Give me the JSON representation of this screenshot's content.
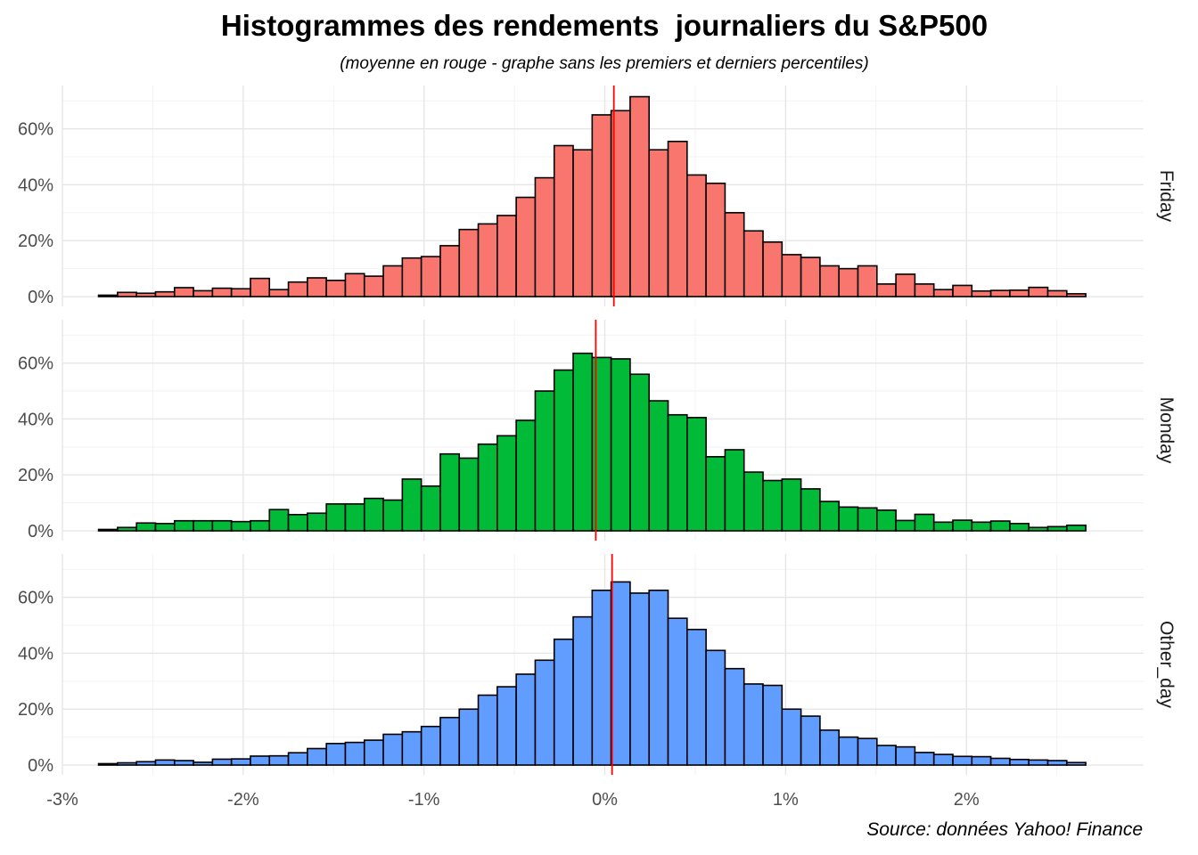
{
  "chart_data": {
    "type": "bar",
    "title": "Histogrammes des rendements  journaliers du S&P500",
    "subtitle": "(moyenne en rouge - graphe sans les premiers et derniers percentiles)",
    "caption": "Source: données Yahoo! Finance",
    "xlabel": "",
    "ylabel": "",
    "x_ticks": [
      "-3%",
      "-2%",
      "-1%",
      "0%",
      "1%",
      "2%"
    ],
    "x_tick_values": [
      -3,
      -2,
      -1,
      0,
      1,
      2
    ],
    "y_ticks": [
      "0%",
      "20%",
      "40%",
      "60%"
    ],
    "y_tick_values": [
      0,
      20,
      40,
      60
    ],
    "xlim": [
      -3.0,
      2.98
    ],
    "ylim": [
      -3.5,
      75.5
    ],
    "bin_start": -2.8,
    "bin_width": 0.105,
    "grid": true,
    "mean_line_color": "#ff0000",
    "bar_outline_color": "#000000",
    "panels": [
      {
        "name": "Friday",
        "color": "#f8766d",
        "mean": 0.05,
        "values": [
          0.5,
          1.5,
          1.2,
          1.7,
          3.2,
          2.1,
          3.0,
          2.8,
          6.5,
          2.5,
          5.2,
          6.7,
          5.8,
          8.2,
          7.3,
          11.0,
          13.8,
          14.3,
          18.2,
          24.0,
          26.0,
          29.0,
          35.5,
          42.5,
          54.0,
          52.5,
          65.0,
          66.5,
          71.5,
          52.5,
          55.5,
          43.5,
          40.5,
          30.0,
          23.5,
          19.5,
          15.0,
          14.0,
          11.0,
          10.0,
          11.0,
          4.5,
          8.0,
          4.5,
          2.5,
          4.0,
          2.0,
          2.2,
          2.3,
          3.3,
          2.1,
          1.0
        ]
      },
      {
        "name": "Monday",
        "color": "#00ba38",
        "mean": -0.05,
        "values": [
          0.5,
          1.2,
          2.8,
          2.6,
          3.6,
          3.6,
          3.6,
          3.3,
          3.6,
          7.6,
          5.8,
          6.3,
          9.6,
          9.6,
          11.6,
          11.0,
          18.5,
          16.0,
          27.5,
          26.0,
          31.0,
          34.0,
          39.5,
          50.0,
          57.5,
          63.5,
          62.0,
          61.5,
          56.0,
          46.5,
          41.5,
          40.5,
          26.5,
          29.0,
          21.0,
          18.0,
          18.5,
          15.0,
          10.5,
          8.5,
          8.2,
          7.4,
          3.7,
          5.9,
          3.1,
          3.8,
          3.1,
          3.5,
          2.6,
          1.2,
          1.5,
          2.0
        ]
      },
      {
        "name": "Other_day",
        "color": "#619cff",
        "mean": 0.04,
        "values": [
          0.5,
          0.8,
          1.2,
          1.8,
          1.6,
          1.0,
          2.1,
          2.2,
          3.2,
          3.3,
          4.4,
          5.9,
          7.7,
          8.1,
          8.9,
          11.0,
          11.9,
          13.8,
          17.0,
          20.0,
          25.0,
          28.0,
          32.5,
          37.5,
          45.0,
          53.0,
          62.5,
          65.5,
          61.5,
          62.5,
          52.5,
          48.5,
          41.0,
          34.5,
          29.0,
          28.5,
          20.0,
          17.5,
          12.5,
          10.0,
          9.5,
          7.0,
          6.5,
          4.5,
          3.8,
          3.1,
          3.0,
          2.4,
          2.0,
          1.8,
          1.6,
          0.9
        ]
      }
    ]
  }
}
